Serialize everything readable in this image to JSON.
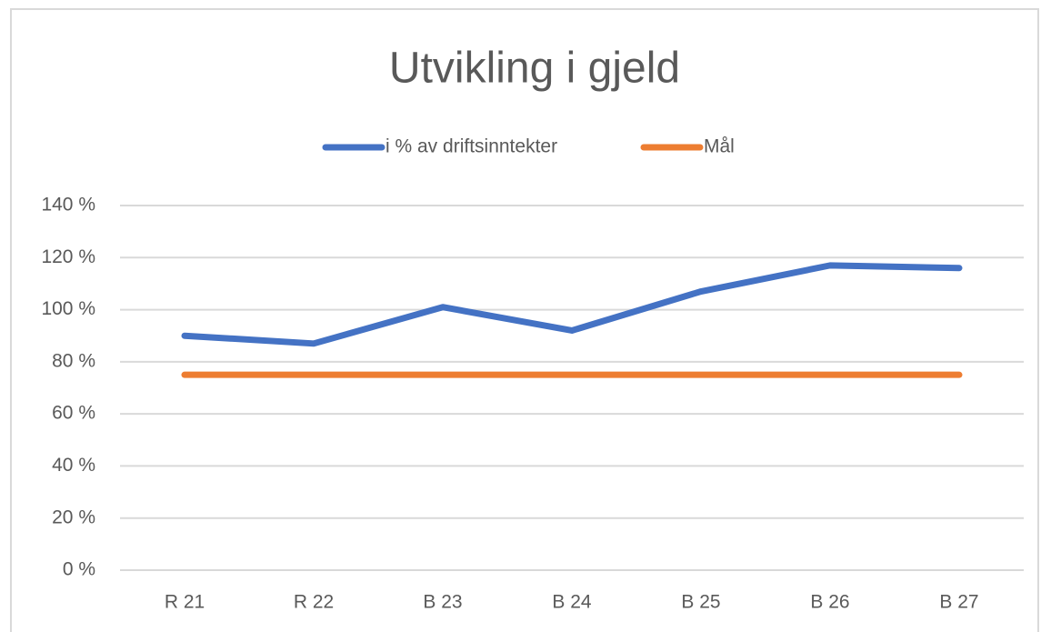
{
  "chart_data": {
    "type": "line",
    "title": "Utvikling i gjeld",
    "categories": [
      "R 21",
      "R 22",
      "B 23",
      "B 24",
      "B 25",
      "B 26",
      "B 27"
    ],
    "series": [
      {
        "name": "i % av driftsinntekter",
        "color": "#4472c4",
        "values": [
          90,
          87,
          101,
          92,
          107,
          117,
          116
        ]
      },
      {
        "name": "Mål",
        "color": "#ed7d31",
        "values": [
          75,
          75,
          75,
          75,
          75,
          75,
          75
        ]
      }
    ],
    "ylim": [
      0,
      140
    ],
    "yticks": [
      {
        "value": 0,
        "label": "0 %"
      },
      {
        "value": 20,
        "label": "20 %"
      },
      {
        "value": 40,
        "label": "40 %"
      },
      {
        "value": 60,
        "label": "60 %"
      },
      {
        "value": 80,
        "label": "80 %"
      },
      {
        "value": 100,
        "label": "100 %"
      },
      {
        "value": 120,
        "label": "120 %"
      },
      {
        "value": 140,
        "label": "140 %"
      }
    ],
    "grid": true,
    "legend": "top"
  }
}
